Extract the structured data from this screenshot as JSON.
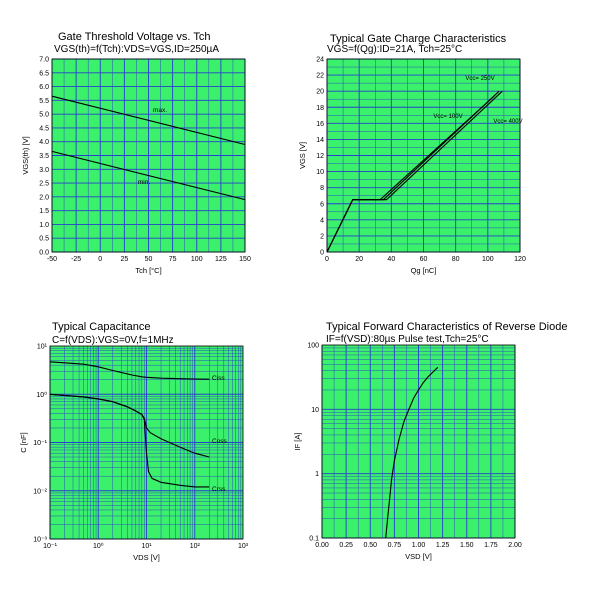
{
  "chart_data": [
    {
      "type": "line",
      "title": "Gate Threshold Voltage vs. Tch",
      "subtitle": "VGS(th)=f(Tch):VDS=VGS,ID=250µA",
      "xlabel": "Tch [°C]",
      "ylabel": "VGS(th) [V]",
      "xlim": [
        -50,
        150
      ],
      "ylim": [
        0.0,
        7.0
      ],
      "xticks": [
        "-50",
        "-25",
        "0",
        "25",
        "50",
        "75",
        "100",
        "125",
        "150"
      ],
      "yticks": [
        "0.0",
        "0.5",
        "1.0",
        "1.5",
        "2.0",
        "2.5",
        "3.0",
        "3.5",
        "4.0",
        "4.5",
        "5.0",
        "5.5",
        "6.0",
        "6.5",
        "7.0"
      ],
      "series": [
        {
          "name": "max.",
          "x": [
            -50,
            150
          ],
          "y": [
            5.65,
            3.9
          ]
        },
        {
          "name": "min.",
          "x": [
            -50,
            150
          ],
          "y": [
            3.65,
            1.9
          ]
        }
      ]
    },
    {
      "type": "line",
      "title": "Typical Gate Charge Characteristics",
      "subtitle": "VGS=f(Qg):ID=21A, Tch=25°C",
      "xlabel": "Qg [nC]",
      "ylabel": "VGS [V]",
      "xlim": [
        0,
        120
      ],
      "ylim": [
        0,
        24
      ],
      "xticks": [
        "0",
        "20",
        "40",
        "60",
        "80",
        "100",
        "120"
      ],
      "yticks": [
        "0",
        "2",
        "4",
        "6",
        "8",
        "10",
        "12",
        "14",
        "16",
        "18",
        "20",
        "22",
        "24"
      ],
      "series": [
        {
          "name": "Vcc= 100V",
          "x": [
            0,
            16,
            33,
            104
          ],
          "y": [
            0,
            6.5,
            6.5,
            19.4
          ]
        },
        {
          "name": "Vcc= 250V",
          "x": [
            0,
            16,
            35,
            107
          ],
          "y": [
            0,
            6.5,
            6.5,
            20.0
          ]
        },
        {
          "name": "Vcc= 400V",
          "x": [
            0,
            16,
            37,
            109
          ],
          "y": [
            0,
            6.5,
            6.5,
            20.0
          ]
        }
      ]
    },
    {
      "type": "line",
      "title": "Typical Capacitance",
      "subtitle": "C=f(VDS):VGS=0V,f=1MHz",
      "xlabel": "VDS [V]",
      "ylabel": "C [nF]",
      "xscale": "log",
      "yscale": "log",
      "xlim": [
        0.1,
        1000
      ],
      "ylim": [
        0.001,
        10
      ],
      "xticks": [
        "10⁻¹",
        "10⁰",
        "10¹",
        "10²",
        "10³"
      ],
      "yticks": [
        "10⁻³",
        "10⁻²",
        "10⁻¹",
        "10⁰",
        "10¹"
      ],
      "series": [
        {
          "name": "Ciss",
          "x": [
            0.1,
            0.5,
            1,
            2,
            5,
            8,
            10,
            20,
            50,
            100,
            200
          ],
          "y": [
            4.7,
            4.2,
            3.7,
            3.1,
            2.5,
            2.3,
            2.25,
            2.15,
            2.1,
            2.07,
            2.05
          ]
        },
        {
          "name": "Coss",
          "x": [
            0.1,
            0.5,
            1,
            2,
            4,
            6,
            8,
            9,
            10,
            12,
            20,
            50,
            100,
            200
          ],
          "y": [
            1.0,
            0.88,
            0.8,
            0.7,
            0.55,
            0.45,
            0.38,
            0.32,
            0.2,
            0.16,
            0.12,
            0.08,
            0.06,
            0.05
          ]
        },
        {
          "name": "Crss",
          "x": [
            0.1,
            0.5,
            1,
            2,
            4,
            6,
            8,
            9,
            10,
            11,
            13,
            20,
            50,
            100,
            200
          ],
          "y": [
            1.0,
            0.88,
            0.8,
            0.7,
            0.55,
            0.45,
            0.38,
            0.3,
            0.06,
            0.025,
            0.018,
            0.015,
            0.013,
            0.012,
            0.012
          ]
        }
      ]
    },
    {
      "type": "line",
      "title": "Typical Forward Characteristics of Reverse Diode",
      "subtitle": "IF=f(VSD):80µs Pulse test,Tch=25°C",
      "xlabel": "VSD [V]",
      "ylabel": "IF [A]",
      "yscale": "log",
      "xlim": [
        0.0,
        2.0
      ],
      "ylim": [
        0.1,
        100
      ],
      "xticks": [
        "0.00",
        "0.25",
        "0.50",
        "0.75",
        "1.00",
        "1.25",
        "1.50",
        "1.75",
        "2.00"
      ],
      "yticks": [
        "0.1",
        "1",
        "10",
        "100"
      ],
      "series": [
        {
          "name": "IF",
          "x": [
            0.66,
            0.68,
            0.7,
            0.72,
            0.75,
            0.8,
            0.85,
            0.9,
            0.95,
            1.0,
            1.05,
            1.1,
            1.15,
            1.2
          ],
          "y": [
            0.1,
            0.2,
            0.4,
            0.8,
            1.6,
            3.5,
            6.5,
            10,
            15,
            20,
            26,
            32,
            38,
            45
          ]
        }
      ]
    }
  ],
  "colors": {
    "bg": "#3bf06a",
    "grid": "#2a3fd0",
    "line": "#000000"
  }
}
